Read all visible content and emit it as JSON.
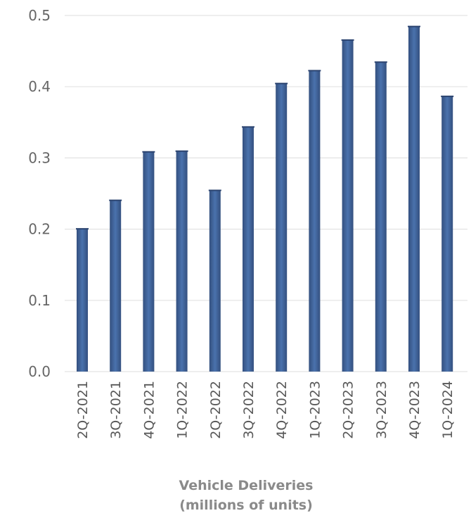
{
  "chart_data": {
    "type": "bar",
    "title": "",
    "xlabel": [
      "Vehicle Deliveries",
      "(millions of units)"
    ],
    "ylabel": "",
    "ylim": [
      0,
      0.5
    ],
    "yticks": [
      "0.0",
      "0.1",
      "0.2",
      "0.3",
      "0.4",
      "0.5"
    ],
    "grid": true,
    "categories": [
      "2Q-2021",
      "3Q-2021",
      "4Q-2021",
      "1Q-2022",
      "2Q-2022",
      "3Q-2022",
      "4Q-2022",
      "1Q-2023",
      "2Q-2023",
      "3Q-2023",
      "4Q-2023",
      "1Q-2024"
    ],
    "values": [
      0.201,
      0.241,
      0.309,
      0.31,
      0.255,
      0.344,
      0.405,
      0.423,
      0.466,
      0.435,
      0.485,
      0.387
    ],
    "bar_color": "#3f5f94",
    "bar_highlight": "#4a72ad"
  }
}
